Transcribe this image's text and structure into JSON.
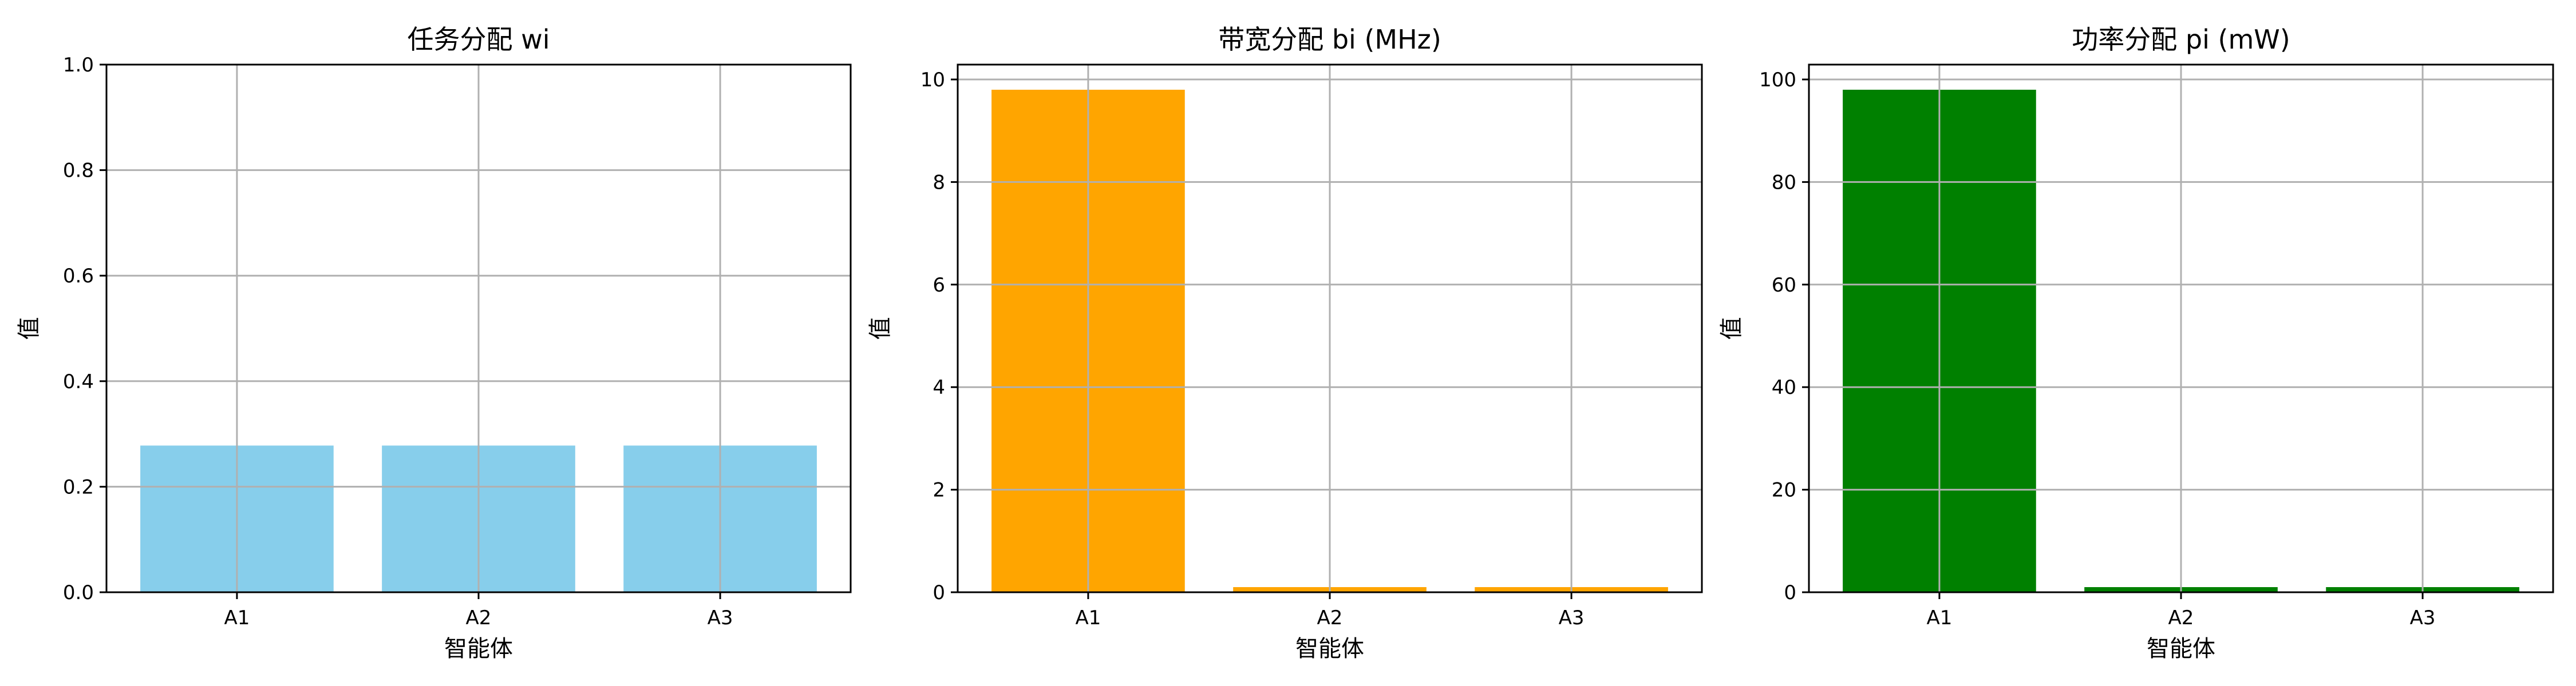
{
  "chart_data": [
    {
      "type": "bar",
      "title": "任务分配 wi",
      "xlabel": "智能体",
      "ylabel": "值",
      "categories": [
        "A1",
        "A2",
        "A3"
      ],
      "values": [
        0.278,
        0.278,
        0.278
      ],
      "ylim": [
        0,
        1.0
      ],
      "yticks": [
        "0.0",
        "0.2",
        "0.4",
        "0.6",
        "0.8",
        "1.0"
      ],
      "color": "#87CEEB",
      "grid": true
    },
    {
      "type": "bar",
      "title": "带宽分配 bi (MHz)",
      "xlabel": "智能体",
      "ylabel": "值",
      "categories": [
        "A1",
        "A2",
        "A3"
      ],
      "values": [
        9.8,
        0.1,
        0.1
      ],
      "ylim": [
        0,
        10.29
      ],
      "yticks": [
        "0",
        "2",
        "4",
        "6",
        "8",
        "10"
      ],
      "color": "#FFA500",
      "grid": true
    },
    {
      "type": "bar",
      "title": "功率分配 pi (mW)",
      "xlabel": "智能体",
      "ylabel": "值",
      "categories": [
        "A1",
        "A2",
        "A3"
      ],
      "values": [
        98,
        1,
        1
      ],
      "ylim": [
        0,
        102.9
      ],
      "yticks": [
        "0",
        "20",
        "40",
        "60",
        "80",
        "100"
      ],
      "color": "#008000",
      "grid": true
    }
  ]
}
